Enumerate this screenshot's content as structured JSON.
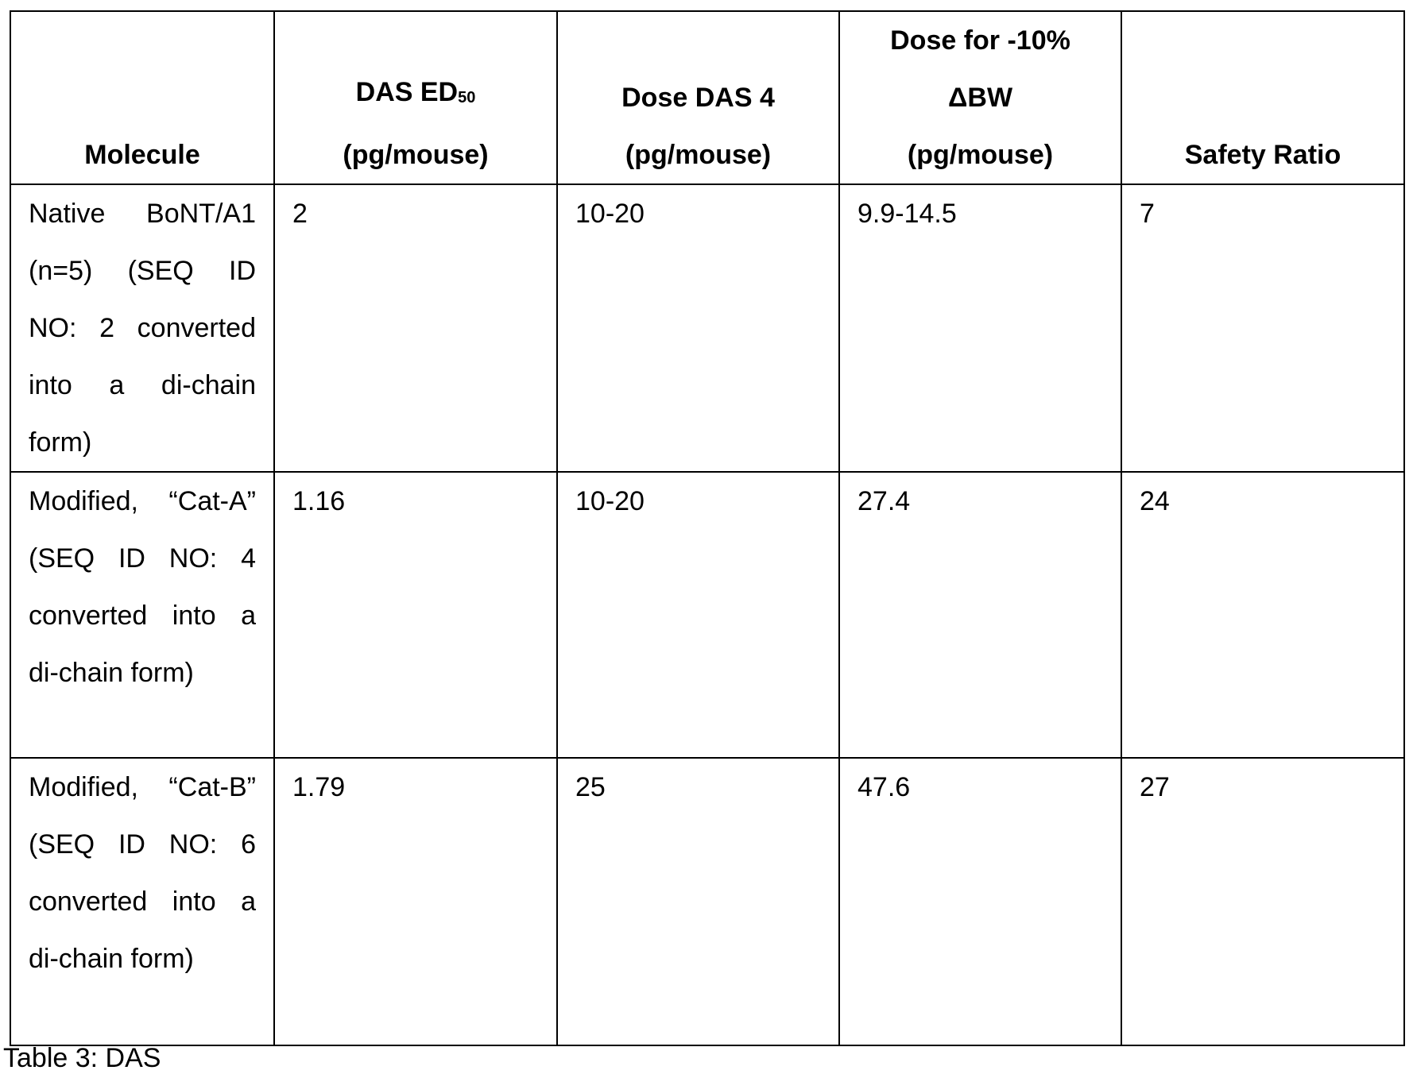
{
  "table": {
    "headers": [
      {
        "text": "Molecule"
      },
      {
        "text": "DAS ED",
        "sub": "50",
        "line2": "(pg/mouse)"
      },
      {
        "text": "Dose DAS 4",
        "line2": "(pg/mouse)"
      },
      {
        "text": "Dose for -10%",
        "line2": "ΔBW",
        "line3": "(pg/mouse)"
      },
      {
        "text": "Safety Ratio"
      }
    ],
    "rows": [
      {
        "molecule": "Native BoNT/A1 (n=5) (SEQ ID NO: 2 converted into a di-chain form)",
        "das_ed50": "2",
        "dose_das4": "10-20",
        "dose_bw": "9.9-14.5",
        "safety_ratio": "7"
      },
      {
        "molecule": "Modified, “Cat-A” (SEQ ID NO: 4 converted into a di-chain form)",
        "das_ed50": "1.16",
        "dose_das4": "10-20",
        "dose_bw": "27.4",
        "safety_ratio": "24"
      },
      {
        "molecule": "Modified, “Cat-B” (SEQ ID NO: 6 converted into a di-chain form)",
        "das_ed50": "1.79",
        "dose_das4": "25",
        "dose_bw": "47.6",
        "safety_ratio": "27"
      }
    ]
  },
  "caption": "Table 3: DAS"
}
